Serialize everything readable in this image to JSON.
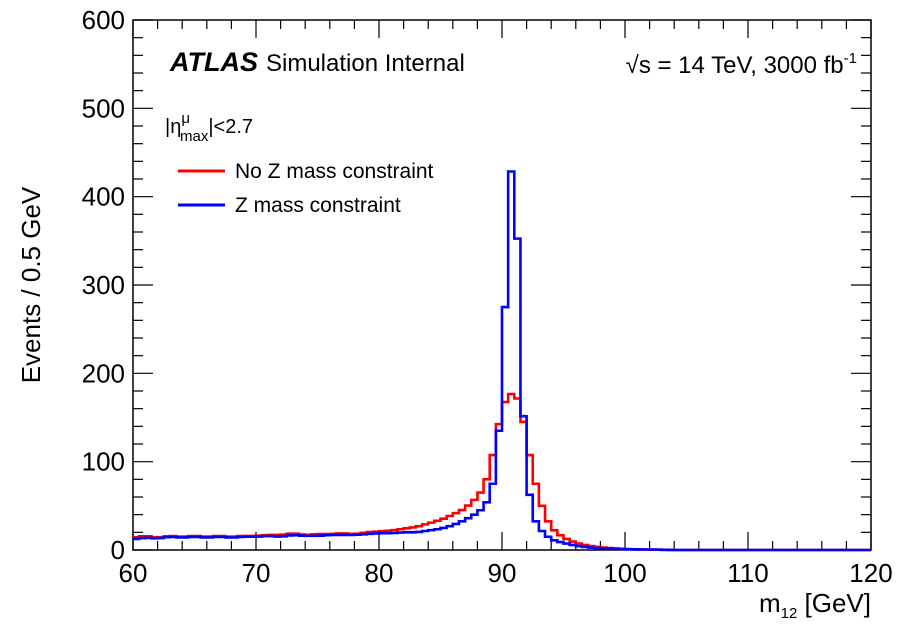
{
  "chart_data": {
    "type": "histogram",
    "xlabel_main": "m",
    "xlabel_sub": "12",
    "xlabel_unit": " [GeV]",
    "ylabel": "Events / 0.5 GeV",
    "xlim": [
      60,
      120
    ],
    "ylim": [
      0,
      600
    ],
    "bin_width": 0.5,
    "x_ticks": [
      "60",
      "70",
      "80",
      "90",
      "100",
      "110",
      "120"
    ],
    "y_ticks": [
      "0",
      "100",
      "200",
      "300",
      "400",
      "500",
      "600"
    ],
    "atlas_label": "ATLAS",
    "atlas_sublabel": "Simulation Internal",
    "energy_label": "√s = 14 TeV, 3000 fb",
    "energy_sup": "-1",
    "legend_header": {
      "pre": "|η",
      "sup": "μ",
      "sub": "max",
      "post": "|<2.7"
    },
    "legend_position": "top-left",
    "series": [
      {
        "name": "No Z mass constraint",
        "color": "#ff0000",
        "points": [
          [
            60,
            14
          ],
          [
            61,
            16
          ],
          [
            62,
            14
          ],
          [
            63,
            16
          ],
          [
            64,
            15
          ],
          [
            65,
            16
          ],
          [
            66,
            15
          ],
          [
            67,
            16
          ],
          [
            68,
            15
          ],
          [
            69,
            16
          ],
          [
            70,
            16
          ],
          [
            71,
            17
          ],
          [
            72,
            17
          ],
          [
            73,
            19
          ],
          [
            74,
            17
          ],
          [
            75,
            18
          ],
          [
            76,
            18
          ],
          [
            77,
            19
          ],
          [
            78,
            18
          ],
          [
            79,
            20
          ],
          [
            80,
            21
          ],
          [
            81,
            22
          ],
          [
            82,
            24
          ],
          [
            83,
            26
          ],
          [
            84,
            30
          ],
          [
            85,
            34
          ],
          [
            86,
            40
          ],
          [
            87,
            47
          ],
          [
            88,
            60
          ],
          [
            88.5,
            70
          ],
          [
            89,
            90
          ],
          [
            89.5,
            125
          ],
          [
            90,
            160
          ],
          [
            90.5,
            175
          ],
          [
            91,
            178
          ],
          [
            91.5,
            165
          ],
          [
            92,
            125
          ],
          [
            92.5,
            90
          ],
          [
            93,
            60
          ],
          [
            93.5,
            40
          ],
          [
            94,
            25
          ],
          [
            95,
            14
          ],
          [
            96,
            8
          ],
          [
            97,
            5
          ],
          [
            98,
            3
          ],
          [
            100,
            1
          ],
          [
            104,
            0
          ],
          [
            120,
            0
          ]
        ]
      },
      {
        "name": "Z mass constraint",
        "color": "#0000ff",
        "points": [
          [
            60,
            12
          ],
          [
            61,
            14
          ],
          [
            62,
            13
          ],
          [
            63,
            15
          ],
          [
            64,
            14
          ],
          [
            65,
            15
          ],
          [
            66,
            14
          ],
          [
            67,
            15
          ],
          [
            68,
            14
          ],
          [
            69,
            15
          ],
          [
            70,
            15
          ],
          [
            71,
            16
          ],
          [
            72,
            15
          ],
          [
            73,
            17
          ],
          [
            74,
            16
          ],
          [
            75,
            16
          ],
          [
            76,
            17
          ],
          [
            77,
            17
          ],
          [
            78,
            17
          ],
          [
            79,
            18
          ],
          [
            80,
            19
          ],
          [
            81,
            19
          ],
          [
            82,
            20
          ],
          [
            83,
            20
          ],
          [
            84,
            22
          ],
          [
            85,
            24
          ],
          [
            86,
            28
          ],
          [
            87,
            34
          ],
          [
            88,
            42
          ],
          [
            88.5,
            48
          ],
          [
            89,
            60
          ],
          [
            89.5,
            90
          ],
          [
            90,
            180
          ],
          [
            90.5,
            370
          ],
          [
            91,
            487
          ],
          [
            91.5,
            218
          ],
          [
            92,
            85
          ],
          [
            92.5,
            40
          ],
          [
            93,
            25
          ],
          [
            93.5,
            18
          ],
          [
            94,
            12
          ],
          [
            95,
            8
          ],
          [
            96,
            5
          ],
          [
            97,
            3
          ],
          [
            98,
            2
          ],
          [
            100,
            1
          ],
          [
            104,
            0
          ],
          [
            120,
            0
          ]
        ]
      }
    ]
  }
}
